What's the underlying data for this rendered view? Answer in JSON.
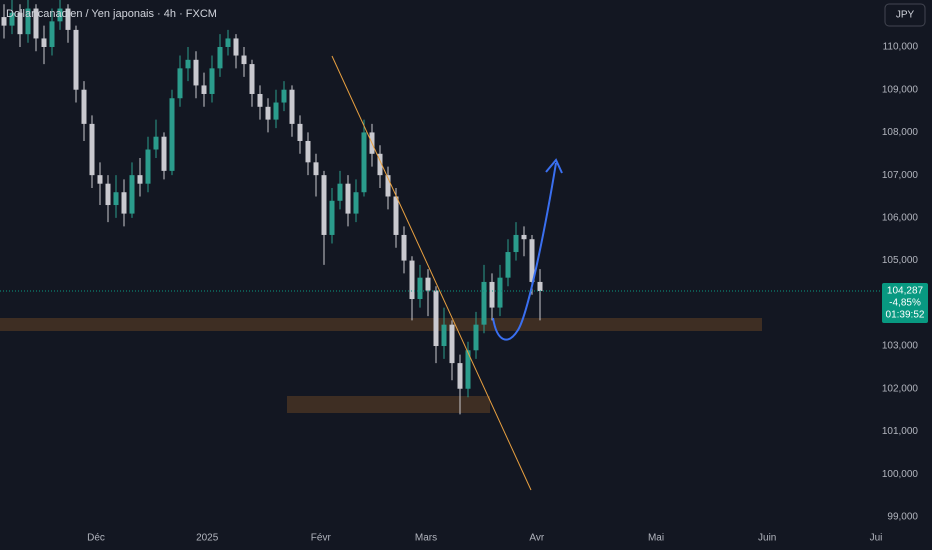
{
  "chart_data": {
    "type": "candlestick",
    "title": "Dollar canadien / Yen japonais · 4h · FXCM",
    "currency": "JPY",
    "open": [
      110.7,
      110.5,
      110.8,
      110.3,
      110.9,
      110.2,
      110.0,
      110.6,
      110.9,
      110.4,
      109.0,
      108.2,
      107.0,
      106.8,
      106.3,
      106.6,
      106.1,
      107.0,
      106.8,
      107.6,
      107.9,
      107.1,
      108.8,
      109.5,
      109.7,
      109.1,
      108.9,
      109.5,
      110.0,
      110.2,
      109.8,
      109.6,
      108.9,
      108.6,
      108.3,
      108.7,
      109.0,
      108.2,
      107.8,
      107.3,
      107.0,
      105.6,
      106.4,
      106.8,
      106.1,
      106.6,
      108.0,
      107.5,
      107.0,
      106.5,
      105.6,
      105.0,
      104.1,
      104.6,
      104.3,
      103.0,
      103.5,
      102.6,
      102.0,
      102.9,
      103.5,
      104.5,
      103.9,
      104.6,
      105.2,
      105.6,
      105.5,
      104.5
    ],
    "high": [
      111.0,
      111.1,
      111.0,
      111.2,
      111.0,
      110.5,
      110.9,
      111.1,
      111.0,
      110.5,
      109.2,
      108.4,
      107.3,
      107.0,
      107.0,
      106.9,
      107.3,
      107.4,
      107.9,
      108.3,
      108.0,
      109.0,
      109.8,
      110.0,
      109.9,
      109.4,
      109.8,
      110.3,
      110.4,
      110.3,
      110.0,
      109.7,
      109.1,
      108.8,
      109.0,
      109.2,
      109.1,
      108.4,
      108.0,
      107.5,
      107.1,
      106.7,
      107.1,
      107.0,
      106.9,
      108.3,
      108.2,
      107.7,
      107.2,
      106.7,
      105.8,
      105.1,
      104.9,
      104.8,
      104.4,
      103.9,
      103.6,
      102.8,
      103.1,
      103.8,
      104.9,
      104.7,
      104.9,
      105.5,
      105.9,
      105.8,
      105.6,
      104.8
    ],
    "low": [
      110.2,
      110.3,
      110.0,
      110.1,
      109.9,
      109.6,
      109.8,
      110.4,
      110.1,
      108.7,
      107.8,
      106.7,
      106.3,
      105.9,
      106.0,
      105.8,
      106.0,
      106.5,
      106.6,
      107.4,
      106.9,
      107.0,
      108.6,
      109.2,
      108.8,
      108.6,
      108.7,
      109.3,
      109.8,
      109.5,
      109.3,
      108.6,
      108.3,
      108.0,
      108.1,
      108.5,
      107.9,
      107.5,
      107.0,
      106.5,
      104.9,
      105.4,
      106.2,
      105.8,
      105.9,
      106.5,
      107.2,
      106.7,
      106.2,
      105.3,
      104.7,
      103.6,
      103.9,
      103.7,
      102.6,
      102.7,
      102.2,
      101.4,
      101.8,
      102.7,
      103.3,
      103.6,
      103.7,
      104.4,
      105.0,
      105.1,
      104.2,
      103.6
    ],
    "close": [
      110.5,
      110.8,
      110.3,
      110.9,
      110.2,
      110.0,
      110.6,
      110.9,
      110.4,
      109.0,
      108.2,
      107.0,
      106.8,
      106.3,
      106.6,
      106.1,
      107.0,
      106.8,
      107.6,
      107.9,
      107.1,
      108.8,
      109.5,
      109.7,
      109.1,
      108.9,
      109.5,
      110.0,
      110.2,
      109.8,
      109.6,
      108.9,
      108.6,
      108.3,
      108.7,
      109.0,
      108.2,
      107.8,
      107.3,
      107.0,
      105.6,
      106.4,
      106.8,
      106.1,
      106.6,
      108.0,
      107.5,
      107.0,
      106.5,
      105.6,
      105.0,
      104.1,
      104.6,
      104.3,
      103.0,
      103.5,
      102.6,
      102.0,
      102.9,
      103.5,
      104.5,
      103.9,
      104.6,
      105.2,
      105.6,
      105.5,
      104.5,
      104.287
    ],
    "up_color": "#2b9c8c",
    "down_color": "#c9c9cf",
    "ylim": [
      98.74,
      111.1
    ],
    "yticks": [
      {
        "value": 99,
        "label": "99,000"
      },
      {
        "value": 100,
        "label": "100,000"
      },
      {
        "value": 101,
        "label": "101,000"
      },
      {
        "value": 102,
        "label": "102,000"
      },
      {
        "value": 103,
        "label": "103,000"
      },
      {
        "value": 104,
        "label": "104,000"
      },
      {
        "value": 105,
        "label": "105,000"
      },
      {
        "value": 106,
        "label": "106,000"
      },
      {
        "value": 107,
        "label": "107,000"
      },
      {
        "value": 108,
        "label": "108,000"
      },
      {
        "value": 109,
        "label": "109,000"
      },
      {
        "value": 110,
        "label": "110,000"
      }
    ],
    "xlim": [
      0,
      110
    ],
    "xticks": [
      {
        "value": 12,
        "label": "Déc"
      },
      {
        "value": 25.9,
        "label": "2025"
      },
      {
        "value": 40.1,
        "label": "Févr"
      },
      {
        "value": 53.25,
        "label": "Mars"
      },
      {
        "value": 67.1,
        "label": "Avr"
      },
      {
        "value": 82,
        "label": "Mai"
      },
      {
        "value": 95.9,
        "label": "Juin"
      },
      {
        "value": 109.5,
        "label": "Jui"
      }
    ],
    "last_price": {
      "value": 104.287,
      "label": "104,287"
    },
    "change": "-4,85%",
    "countdown": "01:39:52",
    "grid": false
  }
}
